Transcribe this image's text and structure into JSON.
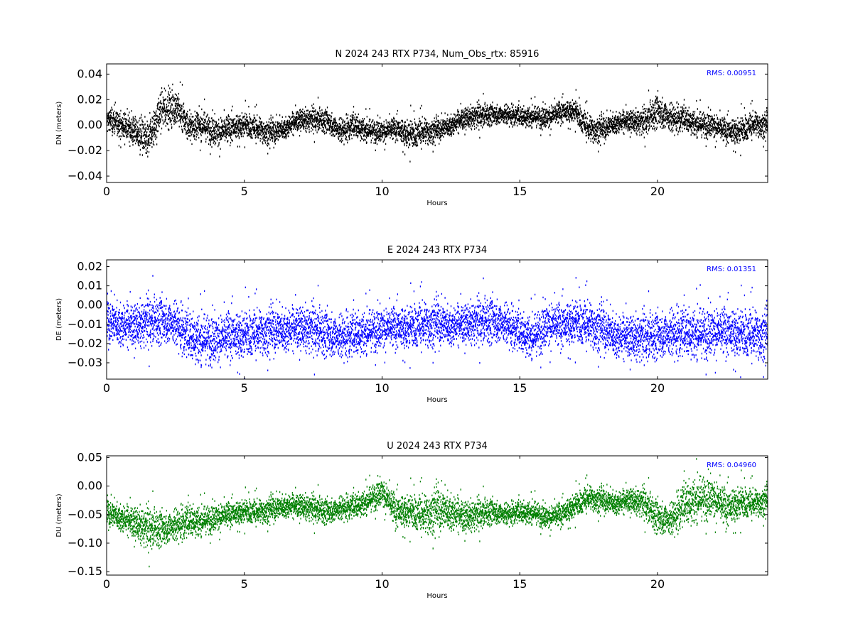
{
  "chart_data": [
    {
      "type": "scatter",
      "component": "N",
      "title": "N 2024 243 RTX  P734, Num_Obs_rtx: 85916",
      "xlabel": "Hours",
      "ylabel": "DN (meters)",
      "xlim": [
        0,
        24
      ],
      "ylim": [
        -0.045,
        0.048
      ],
      "xticks": [
        0,
        5,
        10,
        15,
        20
      ],
      "yticks": [
        -0.04,
        -0.02,
        0.0,
        0.02,
        0.04
      ],
      "ytick_labels": [
        "−0.04",
        "−0.02",
        "0.00",
        "0.02",
        "0.04"
      ],
      "annotation": "RMS:  0.00951",
      "annotation_color": "#0000ff",
      "color": "#000000",
      "grid": false,
      "series": [
        {
          "x": [
            0,
            0.5,
            1,
            1.5,
            2,
            2.5,
            3,
            3.5,
            4,
            4.5,
            5,
            5.5,
            6,
            6.5,
            7,
            7.5,
            8,
            8.5,
            9,
            9.5,
            10,
            10.5,
            11,
            11.5,
            12,
            12.5,
            13,
            13.5,
            14,
            14.5,
            15,
            15.5,
            16,
            16.5,
            17,
            17.5,
            18,
            18.5,
            19,
            19.5,
            20,
            20.5,
            21,
            21.5,
            22,
            22.5,
            23,
            23.5,
            24
          ],
          "center": [
            0.004,
            0.001,
            -0.005,
            -0.012,
            0.012,
            0.015,
            -0.001,
            0.0,
            -0.006,
            -0.003,
            0.0,
            -0.003,
            -0.006,
            -0.002,
            0.004,
            0.004,
            0.003,
            -0.005,
            0.0,
            -0.004,
            -0.005,
            -0.003,
            -0.008,
            -0.005,
            -0.004,
            0.0,
            0.005,
            0.007,
            0.008,
            0.008,
            0.007,
            0.007,
            0.006,
            0.01,
            0.011,
            -0.003,
            -0.003,
            0.002,
            0.003,
            0.002,
            0.011,
            0.005,
            0.005,
            0.001,
            0.0,
            -0.005,
            -0.005,
            0.001,
            0.0
          ],
          "halfwidth": [
            0.01,
            0.01,
            0.012,
            0.016,
            0.016,
            0.014,
            0.012,
            0.011,
            0.012,
            0.011,
            0.01,
            0.01,
            0.01,
            0.009,
            0.009,
            0.009,
            0.009,
            0.01,
            0.01,
            0.009,
            0.009,
            0.009,
            0.012,
            0.011,
            0.009,
            0.009,
            0.009,
            0.009,
            0.008,
            0.008,
            0.008,
            0.008,
            0.009,
            0.009,
            0.009,
            0.011,
            0.01,
            0.009,
            0.009,
            0.01,
            0.013,
            0.012,
            0.01,
            0.01,
            0.01,
            0.01,
            0.011,
            0.01,
            0.01
          ]
        }
      ]
    },
    {
      "type": "scatter",
      "component": "E",
      "title": "E 2024 243 RTX  P734",
      "xlabel": "Hours",
      "ylabel": "DE (meters)",
      "xlim": [
        0,
        24
      ],
      "ylim": [
        -0.0385,
        0.0235
      ],
      "xticks": [
        0,
        5,
        10,
        15,
        20
      ],
      "yticks": [
        -0.03,
        -0.02,
        -0.01,
        0.0,
        0.01,
        0.02
      ],
      "ytick_labels": [
        "−0.03",
        "−0.02",
        "−0.01",
        "0.00",
        "0.01",
        "0.02"
      ],
      "annotation": "RMS:  0.01351",
      "annotation_color": "#0000ff",
      "color": "#0000ff",
      "grid": false,
      "series": [
        {
          "x": [
            0,
            0.5,
            1,
            1.5,
            2,
            2.5,
            3,
            3.5,
            4,
            4.5,
            5,
            5.5,
            6,
            6.5,
            7,
            7.5,
            8,
            8.5,
            9,
            9.5,
            10,
            10.5,
            11,
            11.5,
            12,
            12.5,
            13,
            13.5,
            14,
            14.5,
            15,
            15.5,
            16,
            16.5,
            17,
            17.5,
            18,
            18.5,
            19,
            19.5,
            20,
            20.5,
            21,
            21.5,
            22,
            22.5,
            23,
            23.5,
            24
          ],
          "center": [
            -0.008,
            -0.01,
            -0.011,
            -0.009,
            -0.008,
            -0.01,
            -0.016,
            -0.017,
            -0.018,
            -0.016,
            -0.016,
            -0.014,
            -0.013,
            -0.013,
            -0.012,
            -0.013,
            -0.015,
            -0.017,
            -0.015,
            -0.013,
            -0.012,
            -0.012,
            -0.012,
            -0.01,
            -0.009,
            -0.011,
            -0.01,
            -0.009,
            -0.008,
            -0.01,
            -0.014,
            -0.016,
            -0.01,
            -0.011,
            -0.009,
            -0.01,
            -0.012,
            -0.016,
            -0.017,
            -0.017,
            -0.016,
            -0.015,
            -0.014,
            -0.014,
            -0.014,
            -0.014,
            -0.015,
            -0.015,
            -0.015
          ],
          "halfwidth": [
            0.012,
            0.012,
            0.012,
            0.012,
            0.012,
            0.012,
            0.013,
            0.013,
            0.013,
            0.013,
            0.013,
            0.012,
            0.012,
            0.012,
            0.012,
            0.012,
            0.012,
            0.012,
            0.012,
            0.011,
            0.011,
            0.011,
            0.012,
            0.012,
            0.012,
            0.011,
            0.011,
            0.011,
            0.012,
            0.011,
            0.011,
            0.011,
            0.012,
            0.012,
            0.012,
            0.012,
            0.012,
            0.012,
            0.012,
            0.012,
            0.012,
            0.013,
            0.013,
            0.013,
            0.013,
            0.013,
            0.013,
            0.013,
            0.013
          ]
        }
      ]
    },
    {
      "type": "scatter",
      "component": "U",
      "title": "U 2024 243 RTX  P734",
      "xlabel": "Hours",
      "ylabel": "DU (meters)",
      "xlim": [
        0,
        24
      ],
      "ylim": [
        -0.156,
        0.053
      ],
      "xticks": [
        0,
        5,
        10,
        15,
        20
      ],
      "yticks": [
        -0.15,
        -0.1,
        -0.05,
        0.0,
        0.05
      ],
      "ytick_labels": [
        "−0.15",
        "−0.10",
        "−0.05",
        "0.00",
        "0.05"
      ],
      "annotation": "RMS:  0.04960",
      "annotation_color": "#0000ff",
      "color": "#008000",
      "grid": false,
      "series": [
        {
          "x": [
            0,
            0.5,
            1,
            1.5,
            2,
            2.5,
            3,
            3.5,
            4,
            4.5,
            5,
            5.5,
            6,
            6.5,
            7,
            7.5,
            8,
            8.5,
            9,
            9.5,
            10,
            10.5,
            11,
            11.5,
            12,
            12.5,
            13,
            13.5,
            14,
            14.5,
            15,
            15.5,
            16,
            16.5,
            17,
            17.5,
            18,
            18.5,
            19,
            19.5,
            20,
            20.5,
            21,
            21.5,
            22,
            22.5,
            23,
            23.5,
            24
          ],
          "center": [
            -0.045,
            -0.055,
            -0.065,
            -0.075,
            -0.075,
            -0.07,
            -0.06,
            -0.06,
            -0.055,
            -0.05,
            -0.045,
            -0.045,
            -0.04,
            -0.035,
            -0.035,
            -0.04,
            -0.045,
            -0.04,
            -0.035,
            -0.025,
            -0.01,
            -0.045,
            -0.045,
            -0.05,
            -0.04,
            -0.045,
            -0.055,
            -0.05,
            -0.045,
            -0.05,
            -0.045,
            -0.045,
            -0.055,
            -0.05,
            -0.035,
            -0.02,
            -0.025,
            -0.03,
            -0.025,
            -0.03,
            -0.055,
            -0.06,
            -0.03,
            -0.02,
            -0.02,
            -0.04,
            -0.03,
            -0.03,
            -0.025
          ],
          "halfwidth": [
            0.025,
            0.025,
            0.03,
            0.035,
            0.03,
            0.03,
            0.03,
            0.025,
            0.025,
            0.022,
            0.022,
            0.022,
            0.022,
            0.022,
            0.022,
            0.022,
            0.022,
            0.022,
            0.022,
            0.022,
            0.025,
            0.03,
            0.03,
            0.035,
            0.04,
            0.035,
            0.03,
            0.025,
            0.022,
            0.02,
            0.02,
            0.02,
            0.02,
            0.022,
            0.022,
            0.022,
            0.022,
            0.022,
            0.022,
            0.025,
            0.03,
            0.03,
            0.04,
            0.04,
            0.035,
            0.035,
            0.03,
            0.025,
            0.025
          ]
        }
      ]
    }
  ]
}
